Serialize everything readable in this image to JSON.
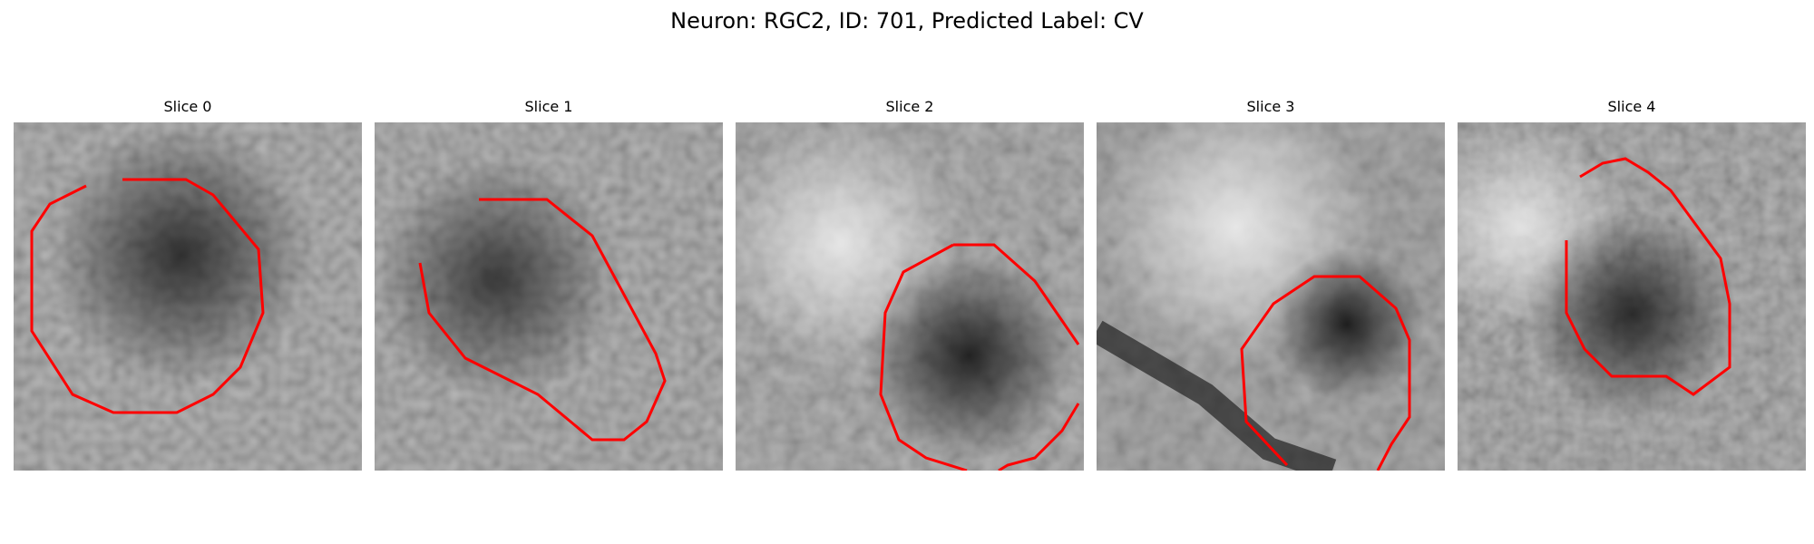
{
  "figure": {
    "title": "Neuron: RGC2, ID: 701, Predicted Label: CV"
  },
  "panels": [
    {
      "title": "Slice 0"
    },
    {
      "title": "Slice 1"
    },
    {
      "title": "Slice 2"
    },
    {
      "title": "Slice 3"
    },
    {
      "title": "Slice 4"
    }
  ],
  "colors": {
    "contour": "#ff0000"
  }
}
